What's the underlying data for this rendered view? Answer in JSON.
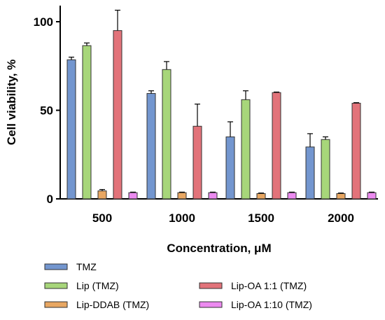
{
  "chart_data": {
    "type": "bar",
    "title": "",
    "xlabel": "Concentration, μM",
    "ylabel": "Cell viability, %",
    "categories": [
      "500",
      "1000",
      "1500",
      "2000"
    ],
    "ylim": [
      0,
      110
    ],
    "yticks": [
      "0",
      "50",
      "100"
    ],
    "series": [
      {
        "name": "TMZ",
        "color": "#7396cf",
        "values": [
          78.5,
          59.5,
          35.0,
          29.3
        ],
        "errors": [
          1.5,
          1.5,
          8.5,
          7.5
        ]
      },
      {
        "name": "Lip (TMZ)",
        "color": "#a7d67a",
        "values": [
          86.5,
          73.0,
          56.0,
          33.5
        ],
        "errors": [
          1.5,
          4.5,
          5.0,
          1.5
        ]
      },
      {
        "name": "Lip-DDAB (TMZ)",
        "color": "#e8a762",
        "values": [
          4.5,
          3.5,
          3.0,
          3.0
        ],
        "errors": [
          0.8,
          0.3,
          0.3,
          0.3
        ]
      },
      {
        "name": "Lip-OA 1:1 (TMZ)",
        "color": "#e2737a",
        "values": [
          95.0,
          41.0,
          60.0,
          54.0
        ],
        "errors": [
          11.5,
          12.5,
          0.3,
          0.3
        ]
      },
      {
        "name": "Lip-OA 1:10 (TMZ)",
        "color": "#ec8af0",
        "values": [
          3.5,
          3.5,
          3.5,
          3.5
        ],
        "errors": [
          0.3,
          0.3,
          0.3,
          0.3
        ]
      }
    ],
    "grid": false,
    "legend": "bottom"
  }
}
